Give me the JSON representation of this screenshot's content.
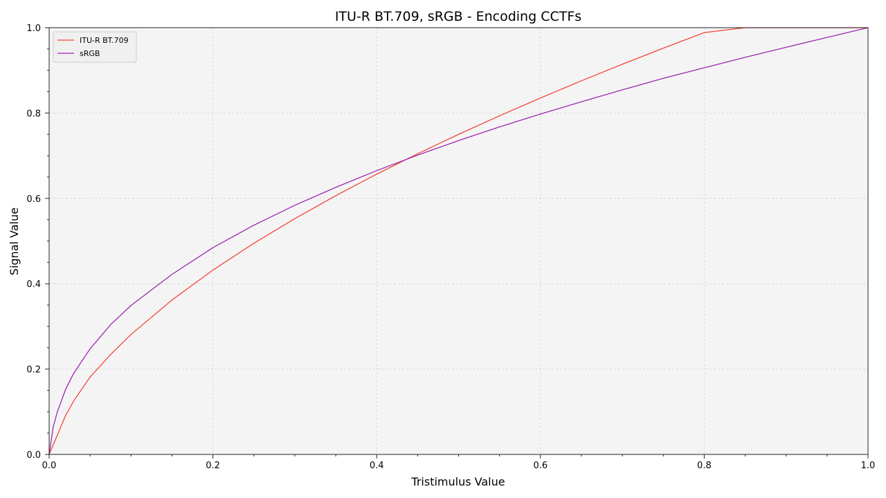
{
  "chart_data": {
    "type": "line",
    "title": "ITU-R BT.709, sRGB - Encoding CCTFs",
    "xlabel": "Tristimulus Value",
    "ylabel": "Signal Value",
    "xlim": [
      0,
      1
    ],
    "ylim": [
      0,
      1
    ],
    "xticks": [
      "0.0",
      "0.2",
      "0.4",
      "0.6",
      "0.8",
      "1.0"
    ],
    "yticks": [
      "0.0",
      "0.2",
      "0.4",
      "0.6",
      "0.8",
      "1.0"
    ],
    "grid": true,
    "legend_position": "top-left",
    "x": [
      0,
      0.005,
      0.01,
      0.02,
      0.03,
      0.05,
      0.075,
      0.1,
      0.15,
      0.2,
      0.25,
      0.3,
      0.35,
      0.4,
      0.45,
      0.5,
      0.55,
      0.6,
      0.65,
      0.7,
      0.75,
      0.8,
      0.85,
      0.9,
      0.95,
      1.0
    ],
    "series": [
      {
        "name": "ITU-R BT.709",
        "color": "#f44336",
        "values": [
          0,
          0.0225,
          0.045,
          0.0909,
          0.1253,
          0.1813,
          0.2341,
          0.2811,
          0.3618,
          0.4319,
          0.4948,
          0.5526,
          0.6063,
          0.6568,
          0.7045,
          0.75,
          0.7935,
          0.8352,
          0.8755,
          0.9143,
          0.952,
          0.9884,
          1.0238,
          1.0582,
          1.0915,
          1.0
        ]
      },
      {
        "name": "sRGB",
        "color": "#9c27b0",
        "values": [
          0,
          0.0646,
          0.0998,
          0.152,
          0.1901,
          0.2474,
          0.304,
          0.3491,
          0.422,
          0.4845,
          0.5371,
          0.5838,
          0.6258,
          0.665,
          0.7014,
          0.7354,
          0.7674,
          0.7977,
          0.8264,
          0.8543,
          0.8812,
          0.906,
          0.9306,
          0.9541,
          0.9772,
          1.0
        ]
      }
    ]
  }
}
